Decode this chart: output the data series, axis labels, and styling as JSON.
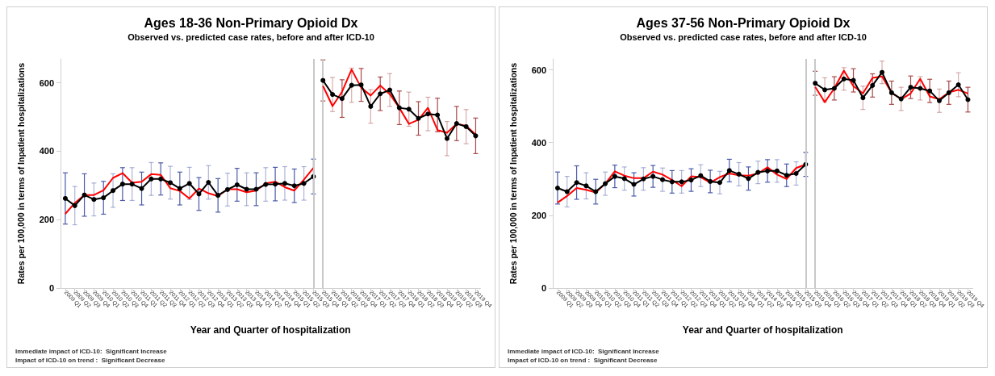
{
  "chart_data": [
    {
      "type": "line",
      "title": "Ages 18-36 Non-Primary Opioid Dx",
      "subtitle": "Observed vs. predicted case rates, before and after ICD-10",
      "xlabel": "Year and Quarter of hospitalization",
      "ylabel": "Rates per 100,000 in terms of Inpatient hospitalizations",
      "categories": [
        "2009 Q1",
        "2009 Q2",
        "2009 Q3",
        "2009 Q4",
        "2010 Q1",
        "2010 Q2",
        "2010 Q3",
        "2010 Q4",
        "2011 Q1",
        "2011 Q2",
        "2011 Q3",
        "2011 Q4",
        "2012 Q1",
        "2012 Q2",
        "2012 Q3",
        "2012 Q4",
        "2013 Q1",
        "2013 Q2",
        "2013 Q3",
        "2013 Q4",
        "2014 Q1",
        "2014 Q2",
        "2014 Q3",
        "2014 Q4",
        "2015 Q1",
        "2015 Q2",
        "2015 Q3",
        "2015 Q4",
        "2016 Q1",
        "2016 Q2",
        "2016 Q3",
        "2016 Q4",
        "2017 Q1",
        "2017 Q2",
        "2017 Q3",
        "2017 Q4",
        "2018 Q1",
        "2018 Q2",
        "2018 Q3",
        "2018 Q4",
        "2019 Q1",
        "2019 Q2",
        "2019 Q3",
        "2019 Q4"
      ],
      "series": [
        {
          "color": "#ff0000",
          "marker": "none",
          "values": [
            217,
            249,
            272,
            272,
            286,
            322,
            336,
            308,
            311,
            333,
            331,
            292,
            284,
            262,
            291,
            277,
            269,
            289,
            289,
            280,
            285,
            306,
            311,
            295,
            285,
            317,
            351,
            null,
            null,
            null,
            null,
            null,
            null,
            null,
            null,
            null,
            null,
            null,
            null,
            null,
            null,
            null,
            null,
            null
          ]
        },
        {
          "color": "#000000",
          "marker": "circle",
          "values": [
            262,
            241,
            272,
            259,
            264,
            285,
            304,
            304,
            291,
            319,
            319,
            308,
            291,
            306,
            275,
            309,
            271,
            288,
            302,
            289,
            289,
            303,
            304,
            306,
            299,
            306,
            326,
            null,
            null,
            null,
            null,
            null,
            null,
            null,
            null,
            null,
            null,
            null,
            null,
            null,
            null,
            null,
            null,
            null
          ],
          "errors": [
            75,
            56,
            62,
            48,
            48,
            49,
            48,
            48,
            48,
            48,
            47,
            48,
            48,
            47,
            48,
            49,
            49,
            48,
            48,
            48,
            48,
            49,
            49,
            49,
            49,
            49,
            51,
            null,
            null,
            null,
            null,
            null,
            null,
            null,
            null,
            null,
            null,
            null,
            null,
            null,
            null,
            null,
            null,
            null
          ]
        },
        {
          "color": "#ff0000",
          "marker": "none",
          "values": [
            null,
            null,
            null,
            null,
            null,
            null,
            null,
            null,
            null,
            null,
            null,
            null,
            null,
            null,
            null,
            null,
            null,
            null,
            null,
            null,
            null,
            null,
            null,
            null,
            null,
            null,
            null,
            591,
            532,
            574,
            639,
            586,
            563,
            592,
            567,
            527,
            480,
            492,
            527,
            462,
            454,
            480,
            474,
            449
          ]
        },
        {
          "color": "#000000",
          "marker": "circle",
          "values": [
            null,
            null,
            null,
            null,
            null,
            null,
            null,
            null,
            null,
            null,
            null,
            null,
            null,
            null,
            null,
            null,
            null,
            null,
            null,
            null,
            null,
            null,
            null,
            null,
            null,
            null,
            null,
            607,
            566,
            554,
            593,
            594,
            531,
            568,
            579,
            527,
            523,
            496,
            509,
            506,
            437,
            481,
            472,
            445
          ],
          "errors": [
            null,
            null,
            null,
            null,
            null,
            null,
            null,
            null,
            null,
            null,
            null,
            null,
            null,
            null,
            null,
            null,
            null,
            null,
            null,
            null,
            null,
            null,
            null,
            null,
            null,
            null,
            null,
            60,
            50,
            55,
            50,
            48,
            49,
            49,
            48,
            49,
            50,
            49,
            49,
            49,
            50,
            50,
            50,
            52
          ]
        }
      ],
      "ylim": [
        0,
        670
      ],
      "yticks": [
        0,
        200,
        400,
        600
      ],
      "grid": false,
      "ref_lines": [
        {
          "axis": "x",
          "value": "2015 Q3",
          "label": null,
          "color": "#c8c8c8"
        },
        {
          "axis": "x",
          "value": "2015 Q4",
          "label": null,
          "color": "#c8c8c8"
        }
      ],
      "annotations": [
        "Immediate impact of ICD-10:  Significant Increase",
        "Impact of ICD-10 on trend :  Significant Decrease"
      ]
    },
    {
      "type": "line",
      "title": "Ages 37-56 Non-Primary Opioid Dx",
      "subtitle": "Observed vs. predicted case rates, before and after ICD-10",
      "xlabel": "Year and Quarter of hospitalization",
      "ylabel": "Rates per 100,000 in terms of Inpatient hospitalizations",
      "categories": [
        "2009 Q1",
        "2009 Q2",
        "2009 Q3",
        "2009 Q4",
        "2010 Q1",
        "2010 Q2",
        "2010 Q3",
        "2010 Q4",
        "2011 Q1",
        "2011 Q2",
        "2011 Q3",
        "2011 Q4",
        "2012 Q1",
        "2012 Q2",
        "2012 Q3",
        "2012 Q4",
        "2013 Q1",
        "2013 Q2",
        "2013 Q3",
        "2013 Q4",
        "2014 Q1",
        "2014 Q2",
        "2014 Q3",
        "2014 Q4",
        "2015 Q1",
        "2015 Q2",
        "2015 Q3",
        "2015 Q4",
        "2016 Q1",
        "2016 Q2",
        "2016 Q3",
        "2016 Q4",
        "2017 Q1",
        "2017 Q2",
        "2017 Q3",
        "2017 Q4",
        "2018 Q1",
        "2018 Q2",
        "2018 Q3",
        "2018 Q4",
        "2019 Q1",
        "2019 Q2",
        "2019 Q3",
        "2019 Q4"
      ],
      "series": [
        {
          "color": "#ff0000",
          "marker": "none",
          "values": [
            235,
            253,
            275,
            270,
            263,
            287,
            321,
            309,
            302,
            302,
            320,
            312,
            297,
            280,
            307,
            305,
            290,
            305,
            315,
            310,
            309,
            315,
            332,
            312,
            300,
            330,
            340,
            null,
            null,
            null,
            null,
            null,
            null,
            null,
            null,
            null,
            null,
            null,
            null,
            null,
            null,
            null,
            null,
            null
          ]
        },
        {
          "color": "#000000",
          "marker": "circle",
          "values": [
            275,
            265,
            290,
            281,
            265,
            287,
            307,
            301,
            285,
            300,
            307,
            298,
            292,
            292,
            297,
            309,
            293,
            290,
            323,
            313,
            301,
            318,
            322,
            322,
            310,
            315,
            340,
            null,
            null,
            null,
            null,
            null,
            null,
            null,
            null,
            null,
            null,
            null,
            null,
            null,
            null,
            null,
            null,
            null
          ],
          "errors": [
            44,
            42,
            46,
            36,
            34,
            32,
            31,
            32,
            32,
            31,
            30,
            32,
            31,
            31,
            31,
            30,
            31,
            31,
            31,
            32,
            32,
            31,
            31,
            31,
            31,
            32,
            33,
            null,
            null,
            null,
            null,
            null,
            null,
            null,
            null,
            null,
            null,
            null,
            null,
            null,
            null,
            null,
            null,
            null
          ]
        },
        {
          "color": "#ff0000",
          "marker": "none",
          "values": [
            null,
            null,
            null,
            null,
            null,
            null,
            null,
            null,
            null,
            null,
            null,
            null,
            null,
            null,
            null,
            null,
            null,
            null,
            null,
            null,
            null,
            null,
            null,
            null,
            null,
            null,
            null,
            553,
            511,
            549,
            598,
            555,
            535,
            578,
            582,
            537,
            519,
            535,
            575,
            527,
            519,
            538,
            545,
            535
          ]
        },
        {
          "color": "#000000",
          "marker": "circle",
          "values": [
            null,
            null,
            null,
            null,
            null,
            null,
            null,
            null,
            null,
            null,
            null,
            null,
            null,
            null,
            null,
            null,
            null,
            null,
            null,
            null,
            null,
            null,
            null,
            null,
            null,
            null,
            null,
            563,
            545,
            549,
            575,
            571,
            523,
            557,
            593,
            537,
            520,
            552,
            549,
            542,
            515,
            537,
            559,
            518
          ],
          "errors": [
            null,
            null,
            null,
            null,
            null,
            null,
            null,
            null,
            null,
            null,
            null,
            null,
            null,
            null,
            null,
            null,
            null,
            null,
            null,
            null,
            null,
            null,
            null,
            null,
            null,
            null,
            null,
            33,
            33,
            32,
            31,
            32,
            32,
            32,
            31,
            32,
            32,
            31,
            32,
            32,
            32,
            32,
            33,
            34
          ]
        }
      ],
      "ylim": [
        0,
        630
      ],
      "yticks": [
        0,
        200,
        400,
        600
      ],
      "grid": false,
      "ref_lines": [
        {
          "axis": "x",
          "value": "2015 Q3",
          "label": null,
          "color": "#c8c8c8"
        },
        {
          "axis": "x",
          "value": "2015 Q4",
          "label": null,
          "color": "#c8c8c8"
        }
      ],
      "annotations": [
        "Immediate impact of ICD-10:  Significant Increase",
        "Impact of ICD-10 on trend :  Significant Decrease"
      ]
    }
  ]
}
